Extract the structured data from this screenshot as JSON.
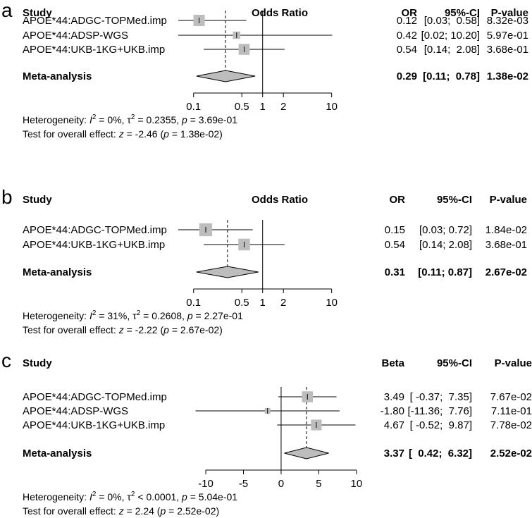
{
  "chart_data": [
    {
      "type": "forest",
      "panel_label": "a",
      "header": {
        "study": "Study",
        "axis_title": "Odds Ratio",
        "effect": "OR",
        "ci": "95%-CI",
        "p": "P-value"
      },
      "scale": "log",
      "xlim": [
        0.06,
        14
      ],
      "ticks": [
        0.1,
        0.5,
        1,
        2,
        10
      ],
      "tick_labels": [
        "0.1",
        "0.5",
        "1",
        "2",
        "10"
      ],
      "null_value": 1,
      "studies": [
        {
          "name": "APOE*44:ADGC-TOPMed.imp",
          "est": 0.12,
          "lo": 0.03,
          "hi": 0.58,
          "weight": 0.42,
          "effect_text": "0.12",
          "ci_text": "[0.03;  0.58]",
          "p_text": "8.32e-03"
        },
        {
          "name": "APOE*44:ADSP-WGS",
          "est": 0.42,
          "lo": 0.02,
          "hi": 10.2,
          "weight": 0.18,
          "effect_text": "0.42",
          "ci_text": "[0.02; 10.20]",
          "p_text": "5.97e-01"
        },
        {
          "name": "APOE*44:UKB-1KG+UKB.imp",
          "est": 0.54,
          "lo": 0.14,
          "hi": 2.08,
          "weight": 0.4,
          "effect_text": "0.54",
          "ci_text": "[0.14;  2.08]",
          "p_text": "3.68e-01"
        }
      ],
      "meta": {
        "name": "Meta-analysis",
        "est": 0.29,
        "lo": 0.11,
        "hi": 0.78,
        "effect_text": "0.29",
        "ci_text": "[0.11;  0.78]",
        "p_text": "1.38e-02"
      },
      "heterogeneity": {
        "prefix": "Heterogeneity: ",
        "I2": "0%",
        "tau2": " = 0.2355",
        "p": " = 3.69e-01"
      },
      "overall": {
        "prefix": "Test for overall effect: ",
        "z": " = -2.46",
        "p": " = 1.38e-02"
      }
    },
    {
      "type": "forest",
      "panel_label": "b",
      "header": {
        "study": "Study",
        "axis_title": "Odds Ratio",
        "effect": "OR",
        "ci": "95%-CI",
        "p": "P-value"
      },
      "scale": "log",
      "xlim": [
        0.06,
        14
      ],
      "ticks": [
        0.1,
        0.5,
        1,
        2,
        10
      ],
      "tick_labels": [
        "0.1",
        "0.5",
        "1",
        "2",
        "10"
      ],
      "null_value": 1,
      "studies": [
        {
          "name": "APOE*44:ADGC-TOPMed.imp",
          "est": 0.15,
          "lo": 0.03,
          "hi": 0.72,
          "weight": 0.55,
          "effect_text": "0.15",
          "ci_text": "[0.03; 0.72]",
          "p_text": "1.84e-02"
        },
        {
          "name": "APOE*44:UKB-1KG+UKB.imp",
          "est": 0.54,
          "lo": 0.14,
          "hi": 2.08,
          "weight": 0.45,
          "effect_text": "0.54",
          "ci_text": "[0.14; 2.08]",
          "p_text": "3.68e-01"
        }
      ],
      "meta": {
        "name": "Meta-analysis",
        "est": 0.31,
        "lo": 0.11,
        "hi": 0.87,
        "effect_text": "0.31",
        "ci_text": "[0.11; 0.87]",
        "p_text": "2.67e-02"
      },
      "heterogeneity": {
        "prefix": "Heterogeneity: ",
        "I2": "31%",
        "tau2": " = 0.2608",
        "p": " = 2.27e-01"
      },
      "overall": {
        "prefix": "Test for overall effect: ",
        "z": " = -2.22",
        "p": " = 2.67e-02"
      }
    },
    {
      "type": "forest",
      "panel_label": "c",
      "header": {
        "study": "Study",
        "axis_title": "",
        "effect": "Beta",
        "ci": "95%-CI",
        "p": "P-value"
      },
      "scale": "linear",
      "xlim": [
        -11.5,
        10.2
      ],
      "ticks": [
        -10,
        -5,
        0,
        5,
        10
      ],
      "tick_labels": [
        "-10",
        "-5",
        "0",
        "5",
        "10"
      ],
      "null_value": 0,
      "studies": [
        {
          "name": "APOE*44:ADGC-TOPMed.imp",
          "est": 3.49,
          "lo": -0.37,
          "hi": 7.35,
          "weight": 0.45,
          "effect_text": "3.49",
          "ci_text": "[ -0.37;  7.35]",
          "p_text": "7.67e-02"
        },
        {
          "name": "APOE*44:ADSP-WGS",
          "est": -1.8,
          "lo": -11.36,
          "hi": 7.76,
          "weight": 0.12,
          "effect_text": "-1.80",
          "ci_text": "[-11.36;  7.76]",
          "p_text": "7.11e-01"
        },
        {
          "name": "APOE*44:UKB-1KG+UKB.imp",
          "est": 4.67,
          "lo": -0.52,
          "hi": 9.87,
          "weight": 0.43,
          "effect_text": "4.67",
          "ci_text": "[ -0.52;  9.87]",
          "p_text": "7.78e-02"
        }
      ],
      "meta": {
        "name": "Meta-analysis",
        "est": 3.37,
        "lo": 0.42,
        "hi": 6.32,
        "effect_text": "3.37",
        "ci_text": "[  0.42;  6.32]",
        "p_text": "2.52e-02"
      },
      "heterogeneity": {
        "prefix": "Heterogeneity: ",
        "I2": "0%",
        "tau2": " < 0.0001",
        "p": " = 5.04e-01"
      },
      "overall": {
        "prefix": "Test for overall effect: ",
        "z": " = 2.24",
        "p": " = 2.52e-02"
      }
    }
  ]
}
